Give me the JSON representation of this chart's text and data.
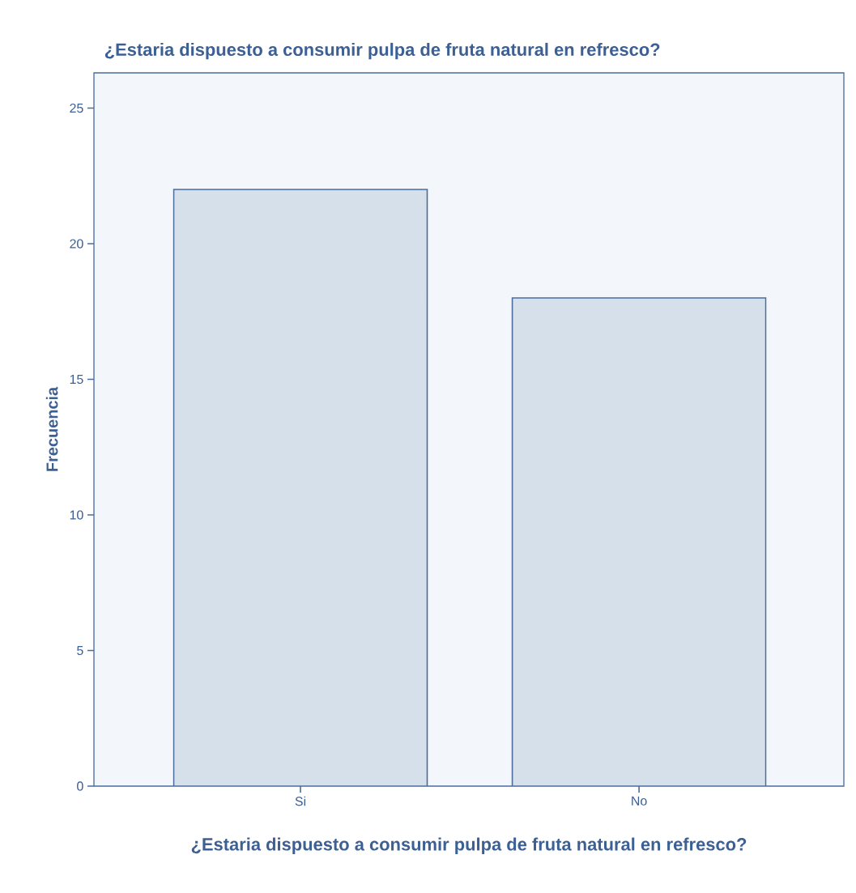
{
  "chart_data": {
    "type": "bar",
    "title": "¿Estaria dispuesto a consumir pulpa de fruta natural en refresco?",
    "xlabel": "¿Estaria dispuesto a consumir pulpa de fruta natural en refresco?",
    "ylabel": "Frecuencia",
    "categories": [
      "Si",
      "No"
    ],
    "values": [
      22,
      18
    ],
    "color": "#d6e0ea",
    "ylim": [
      0,
      26.3
    ],
    "yticks": [
      0,
      5,
      10,
      15,
      20,
      25
    ]
  }
}
